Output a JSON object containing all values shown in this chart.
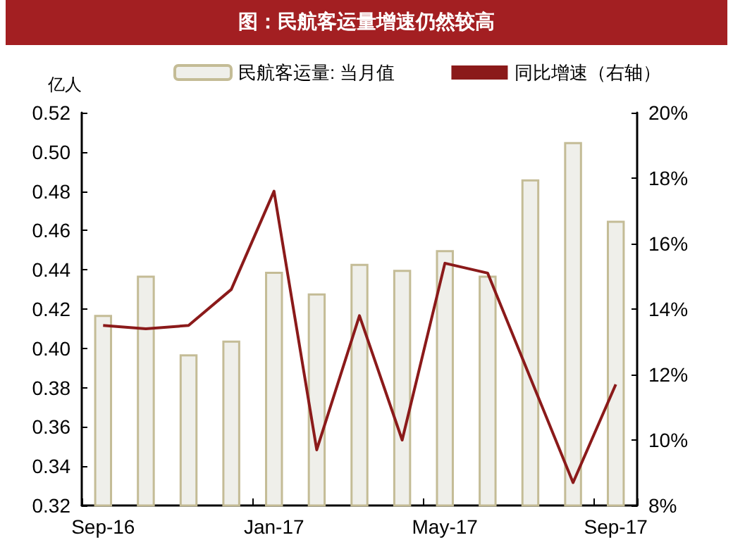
{
  "chart_data": {
    "type": "bar",
    "title": "图：民航客运量增速仍然较高",
    "ylabel": "亿人",
    "categories": [
      "Sep-16",
      null,
      null,
      null,
      "Jan-17",
      null,
      null,
      null,
      "May-17",
      null,
      null,
      null,
      "Sep-17"
    ],
    "series": [
      {
        "name": "民航客运量: 当月值",
        "color": "#efefea",
        "values": [
          0.417,
          0.437,
          0.397,
          0.404,
          0.439,
          0.428,
          0.443,
          0.44,
          0.45,
          0.437,
          0.486,
          0.505,
          0.465
        ]
      },
      {
        "name": "同比增速（右轴）",
        "type": "line",
        "axis": "y2",
        "color": "#8b1a1a",
        "values": [
          13.5,
          13.4,
          13.5,
          14.6,
          17.6,
          9.7,
          13.8,
          10.0,
          15.4,
          15.1,
          11.9,
          8.7,
          11.7
        ]
      }
    ],
    "ylim": [
      0.32,
      0.52
    ],
    "yticks": [
      {
        "value": 0.32,
        "label": "0.32"
      },
      {
        "value": 0.34,
        "label": "0.34"
      },
      {
        "value": 0.36,
        "label": "0.36"
      },
      {
        "value": 0.38,
        "label": "0.38"
      },
      {
        "value": 0.4,
        "label": "0.40"
      },
      {
        "value": 0.42,
        "label": "0.42"
      },
      {
        "value": 0.44,
        "label": "0.44"
      },
      {
        "value": 0.46,
        "label": "0.46"
      },
      {
        "value": 0.48,
        "label": "0.48"
      },
      {
        "value": 0.5,
        "label": "0.50"
      },
      {
        "value": 0.52,
        "label": "0.52"
      }
    ],
    "y2lim": [
      8,
      20
    ],
    "y2ticks": [
      {
        "value": 8,
        "label": "8%"
      },
      {
        "value": 10,
        "label": "10%"
      },
      {
        "value": 12,
        "label": "12%"
      },
      {
        "value": 14,
        "label": "14%"
      },
      {
        "value": 16,
        "label": "16%"
      },
      {
        "value": 18,
        "label": "18%"
      },
      {
        "value": 20,
        "label": "20%"
      }
    ],
    "grid": false,
    "legend": "top",
    "marker": "none",
    "line_style": "solid"
  }
}
